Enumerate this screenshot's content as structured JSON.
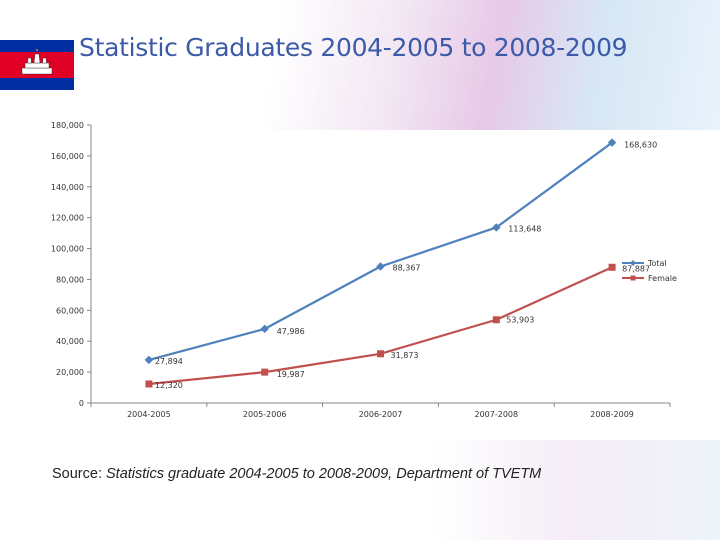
{
  "page": {
    "title": "Statistic Graduates 2004-2005 to 2008-2009",
    "source_prefix": "Source:",
    "source_text": "Statistics graduate 2004-2005 to 2008-2009, Department of TVETM"
  },
  "colors": {
    "title": "#3b5aa8",
    "total": "#4f81bd",
    "female": "#c0504d",
    "flag_blue": "#032ea1",
    "flag_red": "#e00025"
  },
  "icons": {
    "flag": "cambodia-flag-icon"
  },
  "chart_data": {
    "type": "line",
    "title": "",
    "xlabel": "",
    "ylabel": "",
    "categories": [
      "2004-2005",
      "2005-2006",
      "2006-2007",
      "2007-2008",
      "2008-2009"
    ],
    "ylim": [
      0,
      180000
    ],
    "yticks": [
      0,
      20000,
      40000,
      60000,
      80000,
      100000,
      120000,
      140000,
      160000,
      180000
    ],
    "ytick_labels": [
      "0",
      "20,000",
      "40,000",
      "60,000",
      "80,000",
      "100,000",
      "120,000",
      "140,000",
      "160,000",
      "180,000"
    ],
    "grid": false,
    "legend_position": "right",
    "series": [
      {
        "name": "Total",
        "values": [
          27894,
          47986,
          88367,
          113648,
          168630
        ],
        "labels": [
          "27,894",
          "47,986",
          "88,367",
          "113,648",
          "168,630"
        ],
        "marker": "diamond"
      },
      {
        "name": "Female",
        "values": [
          12320,
          19987,
          31873,
          53903,
          87887
        ],
        "labels": [
          "12,320",
          "19,987",
          "31,873",
          "53,903",
          "87,887"
        ],
        "marker": "square"
      }
    ]
  }
}
